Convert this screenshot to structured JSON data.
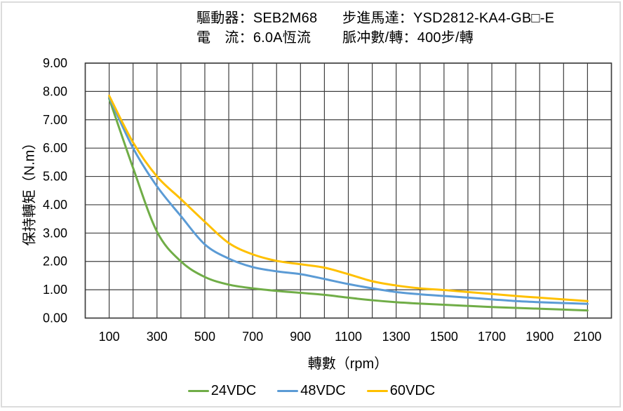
{
  "header": {
    "driver_label": "驅動器：",
    "driver_value": "SEB2M68",
    "motor_label": "步進馬達：",
    "motor_value": "YSD2812-KA4-GB□-E",
    "current_label": "電　流：",
    "current_value": "6.0A恆流",
    "pulses_label": "脈冲數/轉：",
    "pulses_value": "400步/轉"
  },
  "chart_data": {
    "type": "line",
    "title": "",
    "xlabel": "轉數（rpm）",
    "ylabel": "保持轉矩（N.m）",
    "xlim": [
      0,
      2200
    ],
    "ylim": [
      0,
      9
    ],
    "grid": true,
    "gridline_color": "#3f3f3f",
    "axis_text_color": "#000000",
    "legend_position": "bottom",
    "x_gridline_step": 100,
    "y_gridline_step": 1,
    "y_tick_decimals": 2,
    "x_tick_values": [
      100,
      300,
      500,
      700,
      900,
      1100,
      1300,
      1500,
      1700,
      1900,
      2100
    ],
    "x": [
      100,
      200,
      300,
      400,
      500,
      600,
      700,
      800,
      900,
      1000,
      1100,
      1200,
      1300,
      1400,
      1500,
      1600,
      1700,
      1800,
      1900,
      2000,
      2100
    ],
    "series": [
      {
        "name": "24VDC",
        "color": "#70AD47",
        "values": [
          7.75,
          5.3,
          3.05,
          2.0,
          1.45,
          1.18,
          1.05,
          0.96,
          0.89,
          0.82,
          0.72,
          0.63,
          0.56,
          0.51,
          0.47,
          0.43,
          0.39,
          0.36,
          0.33,
          0.3,
          0.27
        ]
      },
      {
        "name": "48VDC",
        "color": "#5B9BD5",
        "values": [
          7.8,
          6.0,
          4.65,
          3.6,
          2.6,
          2.1,
          1.8,
          1.65,
          1.55,
          1.38,
          1.2,
          1.05,
          0.92,
          0.84,
          0.78,
          0.72,
          0.66,
          0.6,
          0.56,
          0.53,
          0.5
        ]
      },
      {
        "name": "60VDC",
        "color": "#FFC000",
        "values": [
          7.85,
          6.2,
          5.0,
          4.2,
          3.4,
          2.65,
          2.25,
          2.02,
          1.9,
          1.78,
          1.55,
          1.3,
          1.15,
          1.05,
          0.99,
          0.92,
          0.85,
          0.78,
          0.72,
          0.66,
          0.6
        ]
      }
    ]
  }
}
